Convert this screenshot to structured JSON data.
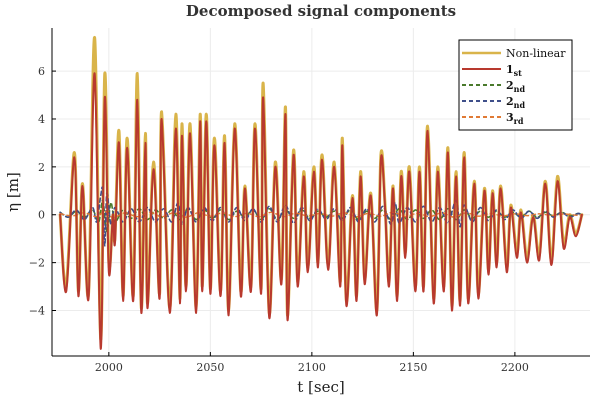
{
  "chart_data": {
    "type": "line",
    "title": "Decomposed signal components",
    "xlabel": "t [sec]",
    "ylabel": "η [m]",
    "xlim": [
      1972,
      2237
    ],
    "ylim": [
      -5.9,
      7.8
    ],
    "xticks": [
      2000,
      2050,
      2100,
      2150,
      2200
    ],
    "yticks": [
      -4,
      -2,
      0,
      2,
      4,
      6
    ],
    "grid": true,
    "legend_position": "top-right",
    "series": [
      {
        "name": "Non-linear",
        "name_main": "Non-linear",
        "name_sub": "",
        "color": "#d9b44a",
        "dash": "solid",
        "x": [
          1976,
          1979,
          1983,
          1985,
          1987,
          1990,
          1993,
          1996,
          1998,
          2000,
          2002,
          2003,
          2005,
          2007,
          2009,
          2012,
          2014,
          2016,
          2018,
          2019,
          2022,
          2025,
          2026,
          2030,
          2033,
          2035,
          2036,
          2038,
          2040,
          2043,
          2045,
          2046,
          2048,
          2050,
          2052,
          2055,
          2057,
          2059,
          2062,
          2065,
          2067,
          2070,
          2072,
          2075,
          2076,
          2079,
          2082,
          2085,
          2087,
          2088,
          2091,
          2093,
          2096,
          2098,
          2101,
          2103,
          2105,
          2108,
          2111,
          2114,
          2115,
          2117,
          2120,
          2122,
          2124,
          2126,
          2129,
          2132,
          2134,
          2136,
          2138,
          2140,
          2142,
          2144,
          2146,
          2148,
          2151,
          2153,
          2155,
          2157,
          2160,
          2162,
          2165,
          2167,
          2169,
          2171,
          2173,
          2175,
          2177,
          2180,
          2182,
          2185,
          2187,
          2189,
          2191,
          2193,
          2196,
          2198,
          2201,
          2203,
          2206,
          2209,
          2212,
          2215,
          2218,
          2221,
          2224,
          2227,
          2230,
          2233
        ],
        "y": [
          0.0,
          -3.0,
          2.6,
          -3.2,
          1.3,
          -3.3,
          7.4,
          -5.2,
          5.9,
          -2.0,
          0.0,
          -1.0,
          3.5,
          -3.4,
          3.2,
          -3.4,
          5.9,
          -3.9,
          3.4,
          -3.7,
          2.2,
          -3.3,
          4.3,
          -3.9,
          4.2,
          -3.5,
          3.8,
          -3.0,
          3.8,
          -3.9,
          4.2,
          -3.0,
          4.2,
          -3.1,
          3.2,
          -3.2,
          3.3,
          -4.0,
          3.8,
          -3.2,
          1.2,
          -3.0,
          3.8,
          -3.1,
          5.5,
          -4.1,
          2.2,
          -2.7,
          4.5,
          -4.2,
          2.7,
          -2.8,
          1.8,
          -2.2,
          2.0,
          -2.0,
          2.5,
          -2.1,
          2.2,
          -2.8,
          3.2,
          -3.6,
          0.8,
          -3.4,
          1.8,
          -2.7,
          0.9,
          -4.0,
          2.5,
          0.5,
          -2.8,
          1.2,
          -3.4,
          1.8,
          -1.6,
          2.0,
          -3.0,
          2.0,
          -3.0,
          3.7,
          -3.5,
          2.0,
          -3.0,
          2.8,
          -3.8,
          1.8,
          -3.6,
          2.6,
          -3.5,
          1.4,
          -3.3,
          1.1,
          -2.3,
          1.0,
          -2.0,
          1.2,
          -2.2,
          0.4,
          -1.6,
          0.2,
          -1.8,
          0.0,
          -1.7,
          1.4,
          -1.9,
          1.6,
          -1.2,
          0.0,
          -0.8,
          0.0
        ]
      },
      {
        "name": "1st",
        "name_main": "1",
        "name_sub": "st",
        "color": "#b8392e",
        "dash": "solid",
        "x": [
          1976,
          1979,
          1983,
          1985,
          1987,
          1990,
          1993,
          1996,
          1998,
          2000,
          2002,
          2003,
          2005,
          2007,
          2009,
          2012,
          2014,
          2016,
          2018,
          2019,
          2022,
          2025,
          2026,
          2030,
          2033,
          2035,
          2036,
          2038,
          2040,
          2043,
          2045,
          2046,
          2048,
          2050,
          2052,
          2055,
          2057,
          2059,
          2062,
          2065,
          2067,
          2070,
          2072,
          2075,
          2076,
          2079,
          2082,
          2085,
          2087,
          2088,
          2091,
          2093,
          2096,
          2098,
          2101,
          2103,
          2105,
          2108,
          2111,
          2114,
          2115,
          2117,
          2120,
          2122,
          2124,
          2126,
          2129,
          2132,
          2134,
          2136,
          2138,
          2140,
          2142,
          2144,
          2146,
          2148,
          2151,
          2153,
          2155,
          2157,
          2160,
          2162,
          2165,
          2167,
          2169,
          2171,
          2173,
          2175,
          2177,
          2180,
          2182,
          2185,
          2187,
          2189,
          2191,
          2193,
          2196,
          2198,
          2201,
          2203,
          2206,
          2209,
          2212,
          2215,
          2218,
          2221,
          2224,
          2227,
          2230,
          2233
        ],
        "y": [
          0.0,
          -3.2,
          2.4,
          -3.4,
          1.2,
          -3.5,
          5.9,
          -5.6,
          4.9,
          -2.4,
          0.0,
          -1.2,
          3.0,
          -3.6,
          2.8,
          -3.6,
          4.8,
          -4.1,
          3.0,
          -3.9,
          1.9,
          -3.5,
          4.0,
          -4.1,
          3.6,
          -3.7,
          3.3,
          -3.2,
          3.4,
          -4.1,
          3.9,
          -3.2,
          3.9,
          -3.3,
          2.9,
          -3.4,
          3.0,
          -4.2,
          3.6,
          -3.4,
          1.1,
          -3.2,
          3.6,
          -3.3,
          4.9,
          -4.3,
          2.0,
          -2.9,
          4.2,
          -4.4,
          2.5,
          -3.0,
          1.6,
          -2.4,
          1.8,
          -2.2,
          2.3,
          -2.3,
          2.0,
          -3.0,
          2.9,
          -3.8,
          0.7,
          -3.6,
          1.6,
          -2.9,
          0.8,
          -4.2,
          2.3,
          0.4,
          -3.0,
          1.1,
          -3.6,
          1.6,
          -1.8,
          1.8,
          -3.2,
          1.8,
          -3.2,
          3.5,
          -3.7,
          1.8,
          -3.2,
          2.6,
          -4.0,
          1.6,
          -3.8,
          2.4,
          -3.7,
          1.3,
          -3.5,
          1.0,
          -2.5,
          0.9,
          -2.2,
          1.1,
          -2.4,
          0.3,
          -1.8,
          0.1,
          -2.0,
          -0.1,
          -1.9,
          1.3,
          -2.1,
          1.4,
          -1.4,
          -0.1,
          -0.9,
          0.0
        ]
      },
      {
        "name": "2nd",
        "name_main": "2",
        "name_sub": "nd",
        "color": "#4a7a2c",
        "dash": "4,3",
        "x": [
          1976,
          1980,
          1984,
          1988,
          1992,
          1995,
          1997,
          1999,
          2001,
          2003,
          2007,
          2011,
          2015,
          2019,
          2023,
          2027,
          2031,
          2035,
          2039,
          2043,
          2047,
          2051,
          2055,
          2059,
          2063,
          2067,
          2071,
          2075,
          2079,
          2083,
          2087,
          2091,
          2095,
          2099,
          2103,
          2107,
          2111,
          2115,
          2119,
          2123,
          2127,
          2131,
          2135,
          2139,
          2143,
          2147,
          2151,
          2155,
          2159,
          2163,
          2167,
          2171,
          2175,
          2179,
          2183,
          2187,
          2191,
          2195,
          2199,
          2203,
          2207,
          2211,
          2215,
          2219,
          2223,
          2227,
          2231,
          2233
        ],
        "y": [
          0.1,
          -0.1,
          0.15,
          -0.1,
          0.2,
          -0.3,
          0.6,
          -0.7,
          0.5,
          -0.3,
          0.2,
          -0.15,
          0.25,
          -0.2,
          0.2,
          -0.15,
          0.2,
          -0.2,
          0.25,
          -0.2,
          0.2,
          -0.15,
          0.2,
          -0.2,
          0.15,
          -0.1,
          0.2,
          -0.2,
          0.25,
          -0.2,
          0.2,
          -0.15,
          0.2,
          -0.15,
          0.15,
          -0.1,
          0.15,
          -0.15,
          0.2,
          -0.2,
          0.15,
          -0.15,
          0.2,
          -0.2,
          0.25,
          -0.2,
          0.2,
          -0.15,
          0.2,
          -0.2,
          0.25,
          -0.2,
          0.2,
          -0.15,
          0.15,
          -0.1,
          0.15,
          -0.1,
          0.1,
          -0.1,
          0.15,
          -0.1,
          0.1,
          -0.05,
          0.1,
          -0.05,
          0.05,
          0.0
        ]
      },
      {
        "name": "2nd",
        "name_main": "2",
        "name_sub": "nd",
        "color": "#3f4f8a",
        "dash": "4,3",
        "x": [
          1976,
          1980,
          1984,
          1988,
          1992,
          1994,
          1996,
          1997,
          1998,
          1999,
          2001,
          2003,
          2007,
          2011,
          2015,
          2019,
          2023,
          2027,
          2031,
          2034,
          2036,
          2039,
          2043,
          2047,
          2051,
          2055,
          2059,
          2063,
          2067,
          2071,
          2075,
          2079,
          2083,
          2087,
          2091,
          2095,
          2099,
          2103,
          2107,
          2111,
          2115,
          2119,
          2123,
          2127,
          2131,
          2135,
          2139,
          2141,
          2143,
          2147,
          2151,
          2155,
          2159,
          2163,
          2167,
          2171,
          2173,
          2175,
          2179,
          2183,
          2187,
          2191,
          2195,
          2199,
          2203,
          2207,
          2211,
          2215,
          2219,
          2223,
          2227,
          2231,
          2233
        ],
        "y": [
          0.1,
          -0.1,
          0.2,
          -0.2,
          0.3,
          -0.3,
          0.8,
          1.0,
          -1.3,
          0.9,
          -0.4,
          0.3,
          -0.3,
          0.25,
          -0.3,
          0.3,
          -0.3,
          0.25,
          -0.3,
          0.5,
          -0.4,
          0.3,
          -0.3,
          0.3,
          -0.25,
          0.3,
          -0.3,
          0.3,
          -0.25,
          0.25,
          -0.3,
          0.35,
          -0.3,
          0.4,
          -0.35,
          0.3,
          -0.25,
          0.25,
          -0.2,
          0.25,
          -0.25,
          0.3,
          -0.3,
          0.25,
          -0.3,
          0.35,
          -0.4,
          0.5,
          -0.35,
          0.3,
          -0.3,
          0.35,
          -0.3,
          0.3,
          -0.35,
          0.6,
          -0.5,
          0.4,
          -0.3,
          0.3,
          -0.25,
          0.2,
          -0.2,
          0.2,
          -0.15,
          0.15,
          -0.15,
          0.15,
          -0.1,
          0.1,
          -0.1,
          0.05,
          0.0
        ]
      },
      {
        "name": "3rd",
        "name_main": "3",
        "name_sub": "rd",
        "color": "#e07a35",
        "dash": "4,3",
        "x": [
          1976,
          1982,
          1988,
          1994,
          1998,
          2002,
          2008,
          2014,
          2020,
          2026,
          2032,
          2038,
          2044,
          2050,
          2056,
          2062,
          2068,
          2074,
          2080,
          2086,
          2092,
          2098,
          2104,
          2110,
          2116,
          2122,
          2128,
          2134,
          2140,
          2146,
          2152,
          2158,
          2164,
          2170,
          2176,
          2182,
          2188,
          2194,
          2200,
          2206,
          2212,
          2218,
          2224,
          2230,
          2233
        ],
        "y": [
          0.05,
          -0.05,
          0.08,
          -0.08,
          0.15,
          -0.12,
          0.08,
          -0.08,
          0.1,
          -0.08,
          0.08,
          -0.1,
          0.08,
          -0.06,
          0.08,
          -0.08,
          0.06,
          -0.08,
          0.1,
          -0.08,
          0.06,
          -0.05,
          0.05,
          -0.06,
          0.08,
          -0.08,
          0.06,
          -0.06,
          0.1,
          -0.08,
          0.06,
          -0.08,
          0.08,
          -0.1,
          0.08,
          -0.06,
          0.05,
          -0.05,
          0.04,
          -0.04,
          0.04,
          -0.03,
          0.03,
          -0.02,
          0.0
        ]
      }
    ]
  }
}
